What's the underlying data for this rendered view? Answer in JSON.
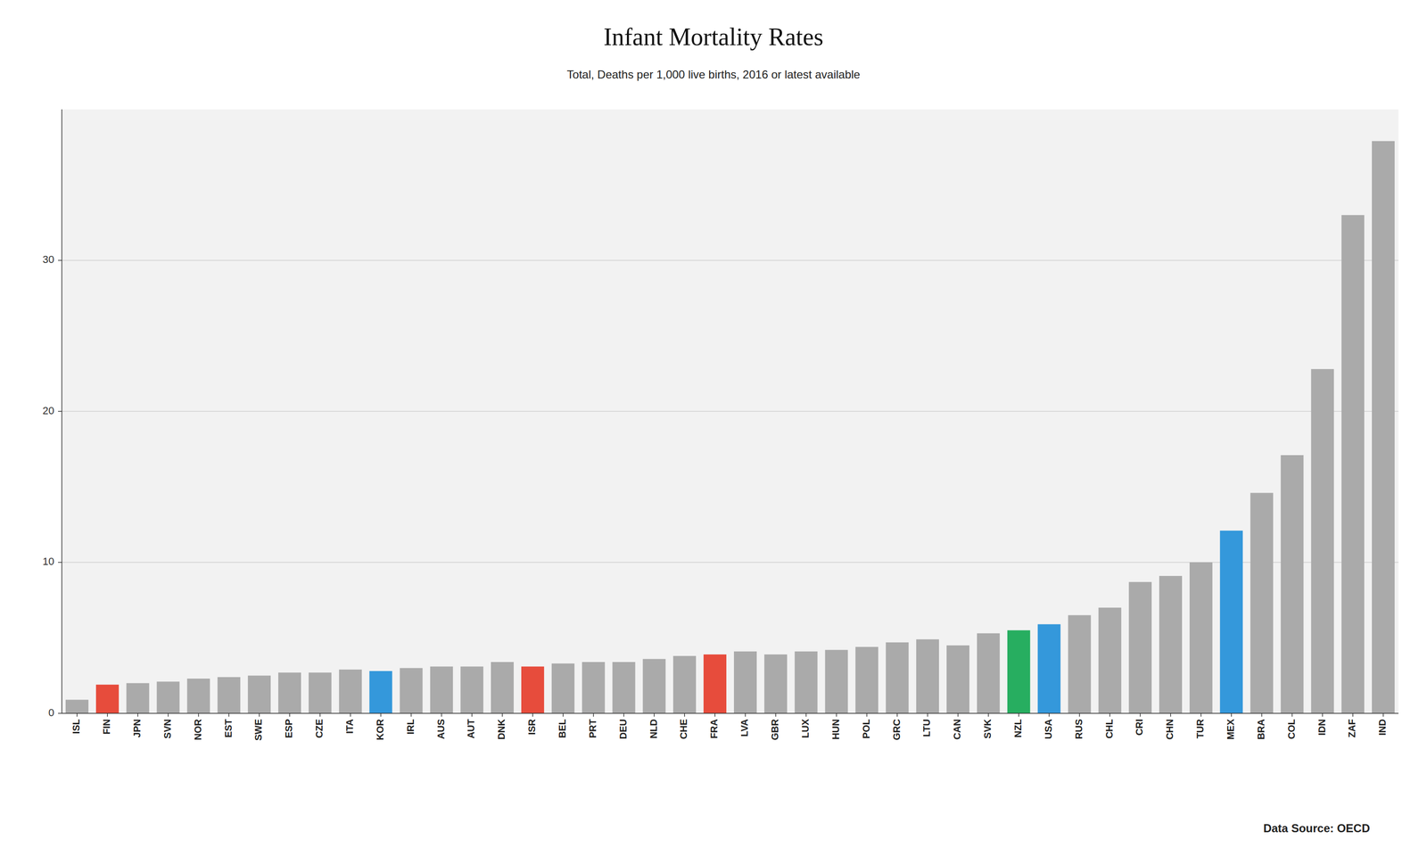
{
  "chart_data": {
    "type": "bar",
    "title": "Infant Mortality Rates",
    "subtitle": "Total, Deaths per 1,000 live births, 2016 or latest available",
    "annotations": [
      "Data Source: OECD"
    ],
    "categories": [
      "ISL",
      "FIN",
      "JPN",
      "SVN",
      "NOR",
      "EST",
      "SWE",
      "ESP",
      "CZE",
      "ITA",
      "KOR",
      "IRL",
      "AUS",
      "AUT",
      "DNK",
      "ISR",
      "BEL",
      "PRT",
      "DEU",
      "NLD",
      "CHE",
      "FRA",
      "LVA",
      "GBR",
      "LUX",
      "HUN",
      "POL",
      "GRC",
      "LTU",
      "CAN",
      "SVK",
      "NZL",
      "USA",
      "RUS",
      "CHL",
      "CRI",
      "CHN",
      "TUR",
      "MEX",
      "BRA",
      "COL",
      "IDN",
      "ZAF",
      "IND"
    ],
    "values": [
      0.9,
      1.9,
      2.0,
      2.1,
      2.3,
      2.4,
      2.5,
      2.7,
      2.7,
      2.9,
      2.8,
      3.0,
      3.1,
      3.1,
      3.4,
      3.1,
      3.3,
      3.4,
      3.4,
      3.6,
      3.8,
      3.9,
      4.1,
      3.9,
      4.1,
      4.2,
      4.4,
      4.7,
      4.9,
      4.5,
      5.3,
      5.5,
      5.9,
      6.5,
      7.0,
      8.7,
      9.1,
      10.0,
      12.1,
      14.6,
      17.1,
      22.8,
      33.0,
      37.9
    ],
    "colors": [
      "#aaaaaa",
      "#e74c3c",
      "#aaaaaa",
      "#aaaaaa",
      "#aaaaaa",
      "#aaaaaa",
      "#aaaaaa",
      "#aaaaaa",
      "#aaaaaa",
      "#aaaaaa",
      "#3498db",
      "#aaaaaa",
      "#aaaaaa",
      "#aaaaaa",
      "#aaaaaa",
      "#e74c3c",
      "#aaaaaa",
      "#aaaaaa",
      "#aaaaaa",
      "#aaaaaa",
      "#aaaaaa",
      "#e74c3c",
      "#aaaaaa",
      "#aaaaaa",
      "#aaaaaa",
      "#aaaaaa",
      "#aaaaaa",
      "#aaaaaa",
      "#aaaaaa",
      "#aaaaaa",
      "#aaaaaa",
      "#27ae60",
      "#3498db",
      "#aaaaaa",
      "#aaaaaa",
      "#aaaaaa",
      "#aaaaaa",
      "#aaaaaa",
      "#3498db",
      "#aaaaaa",
      "#aaaaaa",
      "#aaaaaa",
      "#aaaaaa",
      "#aaaaaa"
    ],
    "ylim": [
      0,
      40
    ],
    "yticks": [
      0,
      10,
      20,
      30
    ],
    "grid": true
  }
}
